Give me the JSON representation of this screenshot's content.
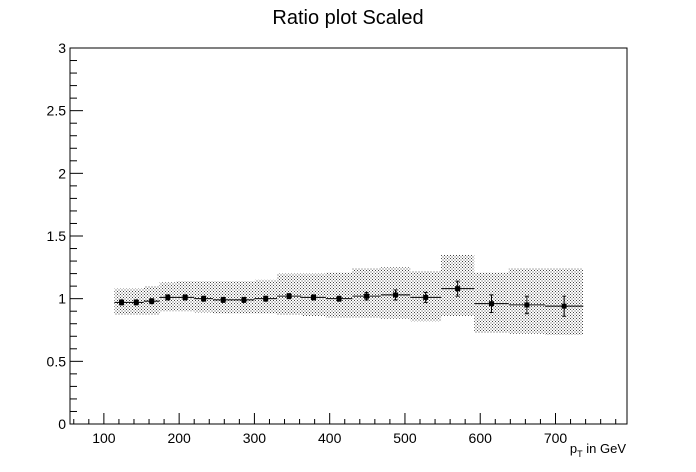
{
  "chart_data": {
    "type": "scatter",
    "title": "Ratio plot Scaled",
    "xlabel_main": "p",
    "xlabel_sub": "T",
    "xlabel_rest": " in GeV",
    "ylabel": "",
    "xlim": [
      55,
      795
    ],
    "ylim": [
      0,
      3
    ],
    "x_ticks": [
      100,
      200,
      300,
      400,
      500,
      600,
      700
    ],
    "x_tick_labels": [
      "100",
      "200",
      "300",
      "400",
      "500",
      "600",
      "700"
    ],
    "y_ticks": [
      0,
      0.5,
      1,
      1.5,
      2,
      2.5,
      3
    ],
    "y_tick_labels": [
      "0",
      "0.5",
      "1",
      "1.5",
      "2",
      "2.5",
      "3"
    ],
    "grid": false,
    "legend": "none",
    "marker_color": "#000000",
    "band_color": "#555555",
    "points": [
      {
        "xlo": 114,
        "xhi": 133,
        "y": 0.97,
        "err": 0.02,
        "band_lo": 0.87,
        "band_hi": 1.08
      },
      {
        "xlo": 133,
        "xhi": 153,
        "y": 0.97,
        "err": 0.02,
        "band_lo": 0.87,
        "band_hi": 1.08
      },
      {
        "xlo": 153,
        "xhi": 174,
        "y": 0.98,
        "err": 0.02,
        "band_lo": 0.87,
        "band_hi": 1.1
      },
      {
        "xlo": 174,
        "xhi": 196,
        "y": 1.01,
        "err": 0.02,
        "band_lo": 0.9,
        "band_hi": 1.13
      },
      {
        "xlo": 196,
        "xhi": 220,
        "y": 1.01,
        "err": 0.02,
        "band_lo": 0.9,
        "band_hi": 1.14
      },
      {
        "xlo": 220,
        "xhi": 245,
        "y": 1.0,
        "err": 0.02,
        "band_lo": 0.89,
        "band_hi": 1.14
      },
      {
        "xlo": 245,
        "xhi": 272,
        "y": 0.99,
        "err": 0.02,
        "band_lo": 0.88,
        "band_hi": 1.14
      },
      {
        "xlo": 272,
        "xhi": 300,
        "y": 0.99,
        "err": 0.02,
        "band_lo": 0.88,
        "band_hi": 1.14
      },
      {
        "xlo": 300,
        "xhi": 330,
        "y": 1.0,
        "err": 0.02,
        "band_lo": 0.88,
        "band_hi": 1.15
      },
      {
        "xlo": 330,
        "xhi": 362,
        "y": 1.02,
        "err": 0.02,
        "band_lo": 0.87,
        "band_hi": 1.2
      },
      {
        "xlo": 362,
        "xhi": 395,
        "y": 1.01,
        "err": 0.02,
        "band_lo": 0.86,
        "band_hi": 1.2
      },
      {
        "xlo": 395,
        "xhi": 430,
        "y": 1.0,
        "err": 0.02,
        "band_lo": 0.85,
        "band_hi": 1.21
      },
      {
        "xlo": 430,
        "xhi": 468,
        "y": 1.02,
        "err": 0.03,
        "band_lo": 0.85,
        "band_hi": 1.24
      },
      {
        "xlo": 468,
        "xhi": 507,
        "y": 1.03,
        "err": 0.04,
        "band_lo": 0.84,
        "band_hi": 1.25
      },
      {
        "xlo": 507,
        "xhi": 548,
        "y": 1.01,
        "err": 0.04,
        "band_lo": 0.82,
        "band_hi": 1.22
      },
      {
        "xlo": 548,
        "xhi": 592,
        "y": 1.08,
        "err": 0.06,
        "band_lo": 0.86,
        "band_hi": 1.35
      },
      {
        "xlo": 592,
        "xhi": 638,
        "y": 0.96,
        "err": 0.07,
        "band_lo": 0.73,
        "band_hi": 1.21
      },
      {
        "xlo": 638,
        "xhi": 686,
        "y": 0.95,
        "err": 0.07,
        "band_lo": 0.72,
        "band_hi": 1.24
      },
      {
        "xlo": 686,
        "xhi": 737,
        "y": 0.94,
        "err": 0.08,
        "band_lo": 0.71,
        "band_hi": 1.24
      }
    ]
  }
}
